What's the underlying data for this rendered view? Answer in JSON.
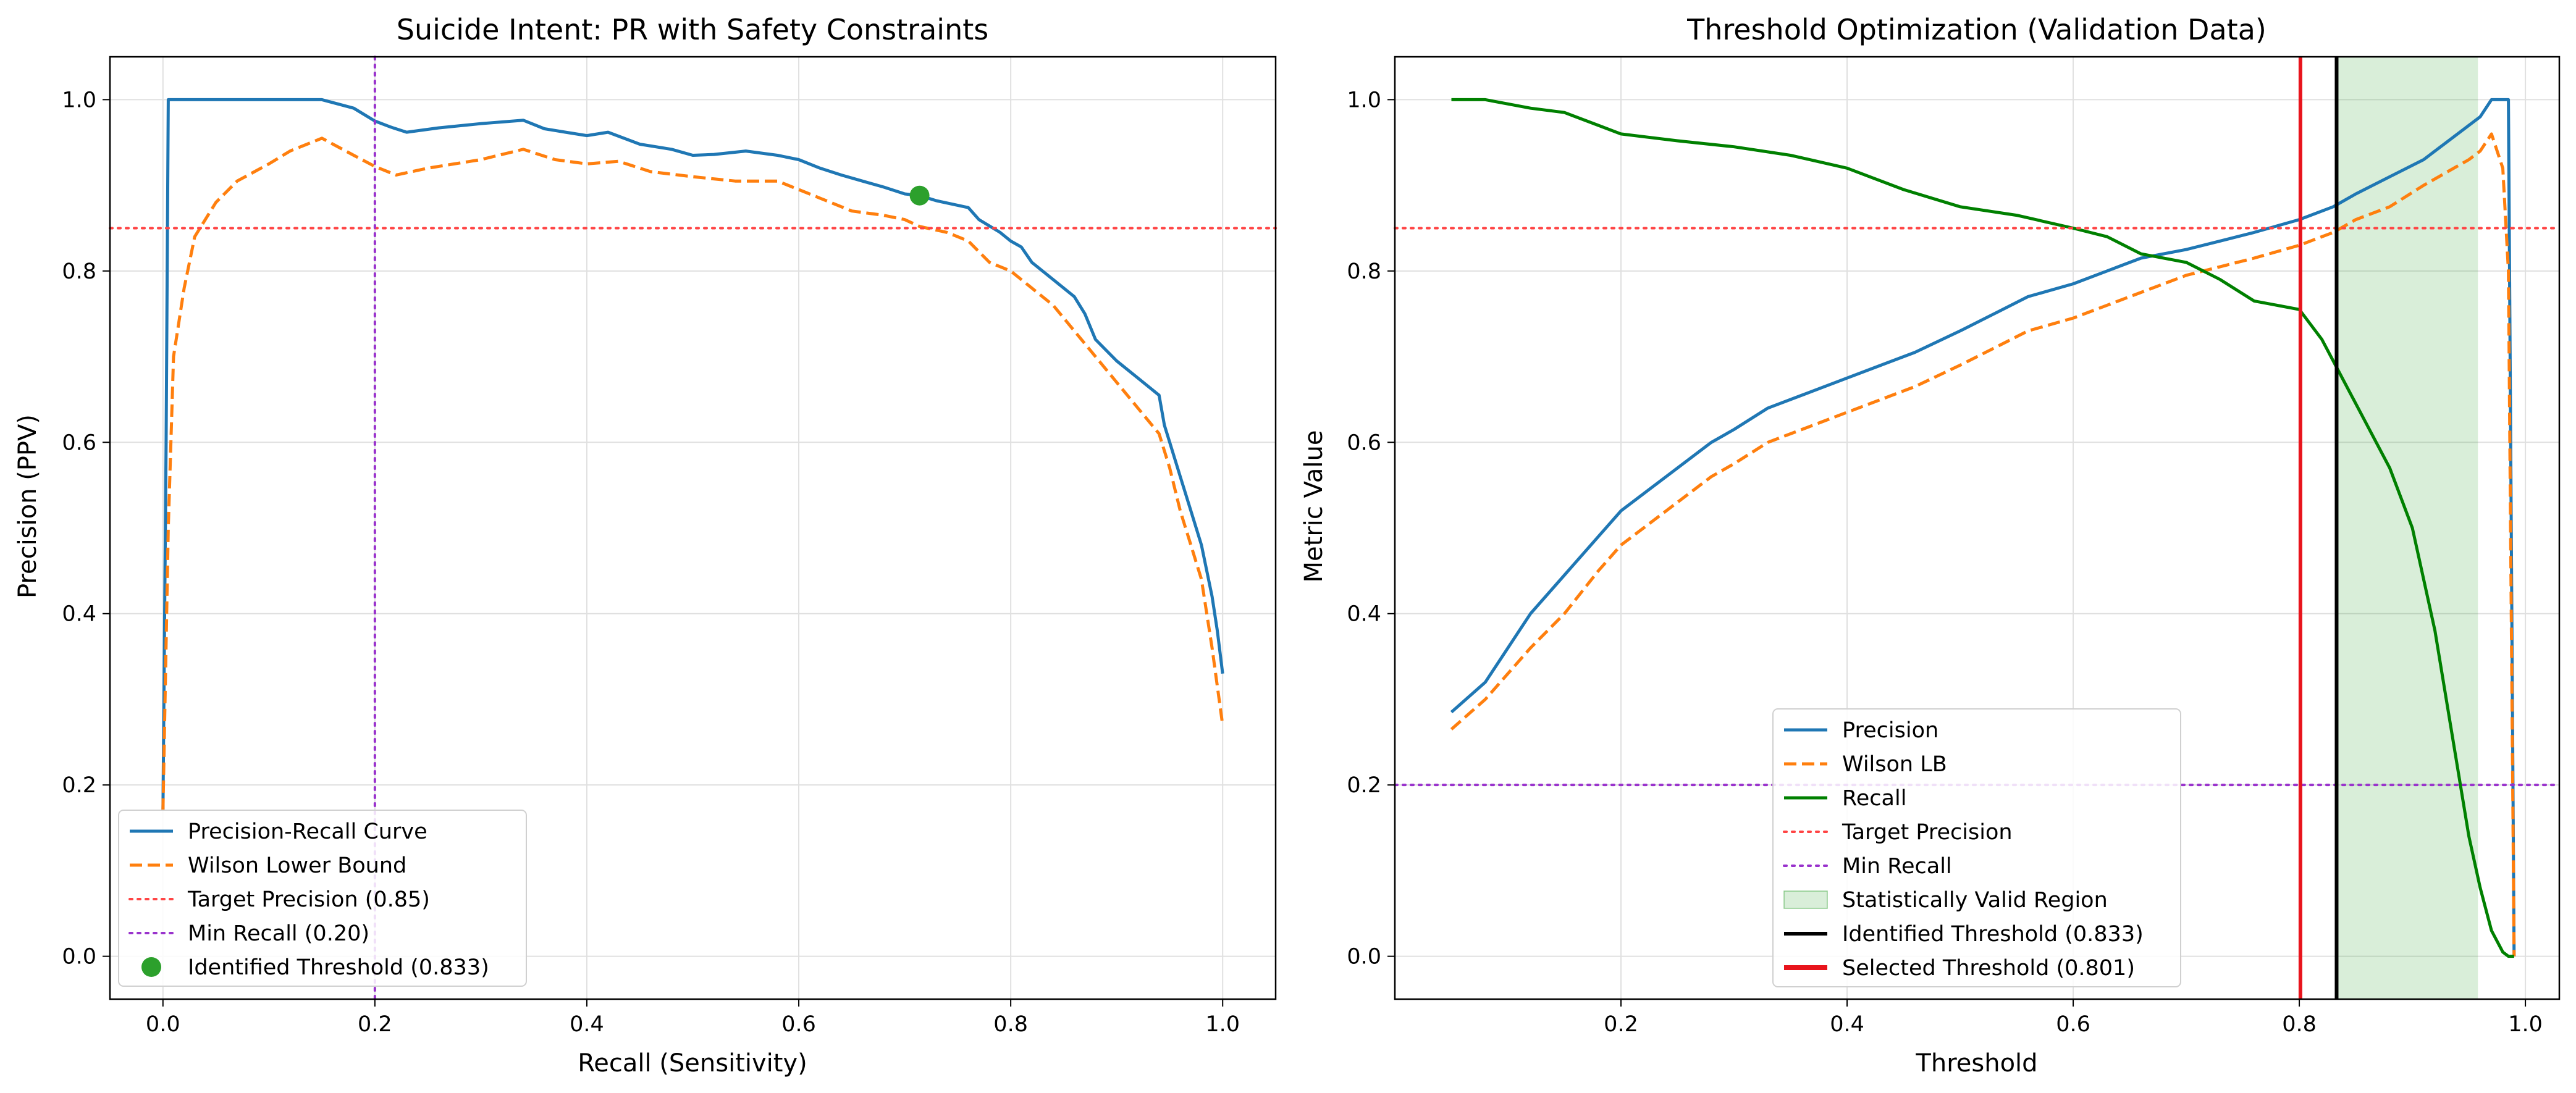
{
  "chart_data": [
    {
      "type": "line",
      "title": "Suicide Intent: PR with Safety Constraints",
      "xlabel": "Recall (Sensitivity)",
      "ylabel": "Precision (PPV)",
      "xlim": [
        -0.05,
        1.05
      ],
      "ylim": [
        -0.05,
        1.05
      ],
      "xticks": [
        "0.0",
        "0.2",
        "0.4",
        "0.6",
        "0.8",
        "1.0"
      ],
      "yticks": [
        "0.0",
        "0.2",
        "0.4",
        "0.6",
        "0.8",
        "1.0"
      ],
      "grid": true,
      "legend_position": "lower-left",
      "series": [
        {
          "name": "Precision-Recall Curve",
          "style": "solid",
          "color": "#1f77b4",
          "x": [
            0.0,
            0.003,
            0.005,
            0.02,
            0.05,
            0.08,
            0.1,
            0.12,
            0.15,
            0.18,
            0.2,
            0.215,
            0.23,
            0.26,
            0.3,
            0.34,
            0.36,
            0.38,
            0.4,
            0.42,
            0.45,
            0.48,
            0.5,
            0.52,
            0.55,
            0.58,
            0.6,
            0.62,
            0.64,
            0.66,
            0.68,
            0.7,
            0.714,
            0.73,
            0.76,
            0.77,
            0.79,
            0.8,
            0.81,
            0.82,
            0.84,
            0.86,
            0.87,
            0.88,
            0.9,
            0.92,
            0.94,
            0.945,
            0.95,
            0.96,
            0.97,
            0.98,
            0.99,
            0.995,
            1.0
          ],
          "y": [
            0.17,
            0.6,
            1.0,
            1.0,
            1.0,
            1.0,
            1.0,
            1.0,
            1.0,
            0.99,
            0.975,
            0.968,
            0.962,
            0.967,
            0.972,
            0.976,
            0.966,
            0.962,
            0.958,
            0.962,
            0.948,
            0.942,
            0.935,
            0.936,
            0.94,
            0.935,
            0.93,
            0.92,
            0.912,
            0.905,
            0.898,
            0.89,
            0.888,
            0.882,
            0.874,
            0.86,
            0.845,
            0.835,
            0.828,
            0.81,
            0.79,
            0.77,
            0.75,
            0.72,
            0.695,
            0.675,
            0.655,
            0.62,
            0.6,
            0.56,
            0.52,
            0.48,
            0.42,
            0.38,
            0.33
          ]
        },
        {
          "name": "Wilson Lower Bound",
          "style": "dashed",
          "color": "#ff7f0e",
          "x": [
            0.0,
            0.005,
            0.01,
            0.02,
            0.03,
            0.05,
            0.07,
            0.1,
            0.12,
            0.15,
            0.18,
            0.2,
            0.22,
            0.25,
            0.3,
            0.34,
            0.37,
            0.4,
            0.43,
            0.46,
            0.5,
            0.54,
            0.58,
            0.6,
            0.62,
            0.65,
            0.68,
            0.7,
            0.714,
            0.74,
            0.76,
            0.78,
            0.8,
            0.82,
            0.84,
            0.86,
            0.88,
            0.9,
            0.92,
            0.94,
            0.95,
            0.96,
            0.97,
            0.98,
            0.99,
            1.0
          ],
          "y": [
            0.17,
            0.5,
            0.7,
            0.78,
            0.84,
            0.88,
            0.905,
            0.925,
            0.94,
            0.955,
            0.935,
            0.922,
            0.912,
            0.92,
            0.93,
            0.942,
            0.93,
            0.925,
            0.928,
            0.916,
            0.91,
            0.905,
            0.905,
            0.895,
            0.885,
            0.87,
            0.865,
            0.86,
            0.852,
            0.845,
            0.835,
            0.81,
            0.8,
            0.78,
            0.76,
            0.73,
            0.7,
            0.67,
            0.64,
            0.61,
            0.57,
            0.52,
            0.48,
            0.44,
            0.36,
            0.27
          ]
        }
      ],
      "reference_lines": [
        {
          "name": "Target Precision (0.85)",
          "orientation": "horizontal",
          "value": 0.85,
          "style": "dotted",
          "color": "#ff4444"
        },
        {
          "name": "Min Recall (0.20)",
          "orientation": "vertical",
          "value": 0.2,
          "style": "dotted",
          "color": "#9932cc"
        }
      ],
      "points": [
        {
          "name": "Identified Threshold (0.833)",
          "x": 0.714,
          "y": 0.888,
          "color": "#2ca02c"
        }
      ]
    },
    {
      "type": "line",
      "title": "Threshold Optimization (Validation Data)",
      "xlabel": "Threshold",
      "ylabel": "Metric Value",
      "xlim": [
        0.0,
        1.03
      ],
      "ylim": [
        -0.05,
        1.05
      ],
      "xticks": [
        "0.2",
        "0.4",
        "0.6",
        "0.8",
        "1.0"
      ],
      "yticks": [
        "0.0",
        "0.2",
        "0.4",
        "0.6",
        "0.8",
        "1.0"
      ],
      "grid": true,
      "legend_position": "lower-center",
      "series": [
        {
          "name": "Precision",
          "style": "solid",
          "color": "#1f77b4",
          "x": [
            0.05,
            0.08,
            0.1,
            0.12,
            0.15,
            0.18,
            0.2,
            0.22,
            0.25,
            0.28,
            0.3,
            0.33,
            0.36,
            0.4,
            0.43,
            0.46,
            0.5,
            0.53,
            0.56,
            0.6,
            0.63,
            0.66,
            0.7,
            0.73,
            0.76,
            0.8,
            0.83,
            0.85,
            0.88,
            0.91,
            0.93,
            0.95,
            0.96,
            0.97,
            0.98,
            0.985,
            0.99
          ],
          "y": [
            0.285,
            0.32,
            0.36,
            0.4,
            0.445,
            0.49,
            0.52,
            0.54,
            0.57,
            0.6,
            0.615,
            0.64,
            0.655,
            0.675,
            0.69,
            0.705,
            0.73,
            0.75,
            0.77,
            0.785,
            0.8,
            0.815,
            0.825,
            0.835,
            0.845,
            0.86,
            0.875,
            0.89,
            0.91,
            0.93,
            0.95,
            0.97,
            0.98,
            1.0,
            1.0,
            1.0,
            0.0
          ]
        },
        {
          "name": "Wilson LB",
          "style": "dashed",
          "color": "#ff7f0e",
          "x": [
            0.05,
            0.08,
            0.1,
            0.12,
            0.15,
            0.18,
            0.2,
            0.22,
            0.25,
            0.28,
            0.3,
            0.33,
            0.36,
            0.4,
            0.43,
            0.46,
            0.5,
            0.53,
            0.56,
            0.6,
            0.63,
            0.66,
            0.7,
            0.73,
            0.76,
            0.8,
            0.83,
            0.85,
            0.88,
            0.91,
            0.93,
            0.95,
            0.96,
            0.97,
            0.98,
            0.985,
            0.99
          ],
          "y": [
            0.265,
            0.3,
            0.33,
            0.36,
            0.4,
            0.45,
            0.48,
            0.5,
            0.53,
            0.56,
            0.575,
            0.6,
            0.615,
            0.635,
            0.65,
            0.665,
            0.69,
            0.71,
            0.73,
            0.745,
            0.76,
            0.775,
            0.795,
            0.805,
            0.815,
            0.83,
            0.845,
            0.86,
            0.875,
            0.9,
            0.915,
            0.93,
            0.94,
            0.96,
            0.92,
            0.8,
            0.0
          ]
        },
        {
          "name": "Recall",
          "style": "solid",
          "color": "#008000",
          "x": [
            0.05,
            0.08,
            0.1,
            0.12,
            0.15,
            0.18,
            0.2,
            0.25,
            0.3,
            0.35,
            0.4,
            0.45,
            0.5,
            0.55,
            0.6,
            0.63,
            0.66,
            0.7,
            0.73,
            0.76,
            0.8,
            0.82,
            0.84,
            0.86,
            0.88,
            0.9,
            0.92,
            0.93,
            0.94,
            0.95,
            0.96,
            0.97,
            0.98,
            0.985,
            0.99
          ],
          "y": [
            1.0,
            1.0,
            0.995,
            0.99,
            0.985,
            0.97,
            0.96,
            0.952,
            0.945,
            0.935,
            0.92,
            0.895,
            0.875,
            0.865,
            0.85,
            0.84,
            0.82,
            0.81,
            0.79,
            0.765,
            0.755,
            0.72,
            0.67,
            0.62,
            0.57,
            0.5,
            0.38,
            0.3,
            0.22,
            0.14,
            0.08,
            0.03,
            0.005,
            0.0,
            0.0
          ]
        }
      ],
      "reference_lines": [
        {
          "name": "Target Precision",
          "orientation": "horizontal",
          "value": 0.85,
          "style": "dotted",
          "color": "#ff4444"
        },
        {
          "name": "Min Recall",
          "orientation": "horizontal",
          "value": 0.2,
          "style": "dotted",
          "color": "#9932cc"
        },
        {
          "name": "Identified Threshold (0.833)",
          "orientation": "vertical",
          "value": 0.833,
          "style": "solid",
          "color": "#000000"
        },
        {
          "name": "Selected Threshold (0.801)",
          "orientation": "vertical",
          "value": 0.801,
          "style": "solid",
          "color": "#e8141c"
        }
      ],
      "regions": [
        {
          "name": "Statistically Valid Region",
          "x_start": 0.833,
          "x_end": 0.958,
          "color": "#2ca02c",
          "opacity": 0.18
        }
      ]
    }
  ]
}
